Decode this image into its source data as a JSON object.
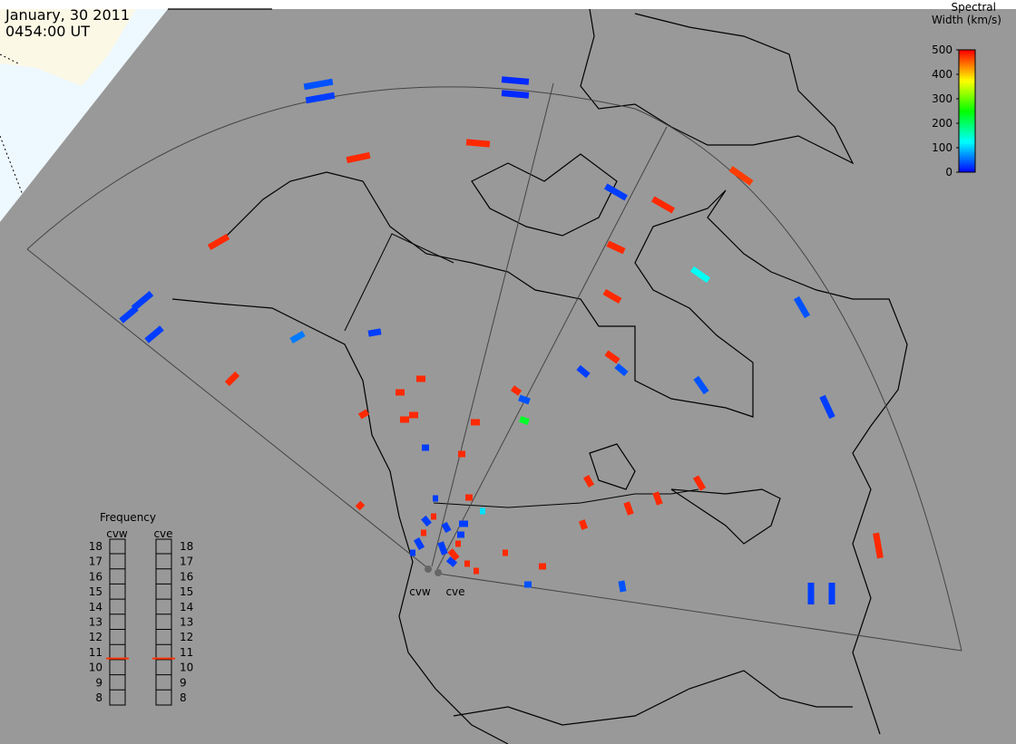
{
  "header": {
    "date": "January, 30 2011",
    "time": "0454:00 UT"
  },
  "colorbar": {
    "title_lines": [
      "Spectral",
      "Width (km/s)"
    ],
    "range": [
      0,
      500
    ],
    "ticks": [
      0,
      100,
      200,
      300,
      400,
      500
    ]
  },
  "frequency": {
    "title": "Frequency",
    "radars": [
      {
        "name": "cvw",
        "value": 10.6
      },
      {
        "name": "cve",
        "value": 10.6
      }
    ],
    "range": [
      8,
      18
    ],
    "ticks": [
      8,
      9,
      10,
      11,
      12,
      13,
      14,
      15,
      16,
      17,
      18
    ]
  },
  "cells": {
    "values": [
      40,
      30,
      20,
      20,
      480,
      480,
      480,
      470,
      30,
      480,
      480,
      130,
      480,
      40,
      30,
      30,
      30,
      60,
      30,
      480,
      480,
      30,
      40,
      40,
      30,
      480,
      40,
      230,
      480,
      480,
      480,
      480,
      480,
      480,
      30,
      480,
      480,
      480,
      480,
      480,
      480,
      480,
      30,
      30,
      40,
      40,
      480,
      480,
      110,
      480,
      30,
      480,
      30,
      30,
      480,
      30,
      480,
      30,
      30,
      480,
      480,
      30,
      480,
      30,
      480,
      30
    ]
  }
}
